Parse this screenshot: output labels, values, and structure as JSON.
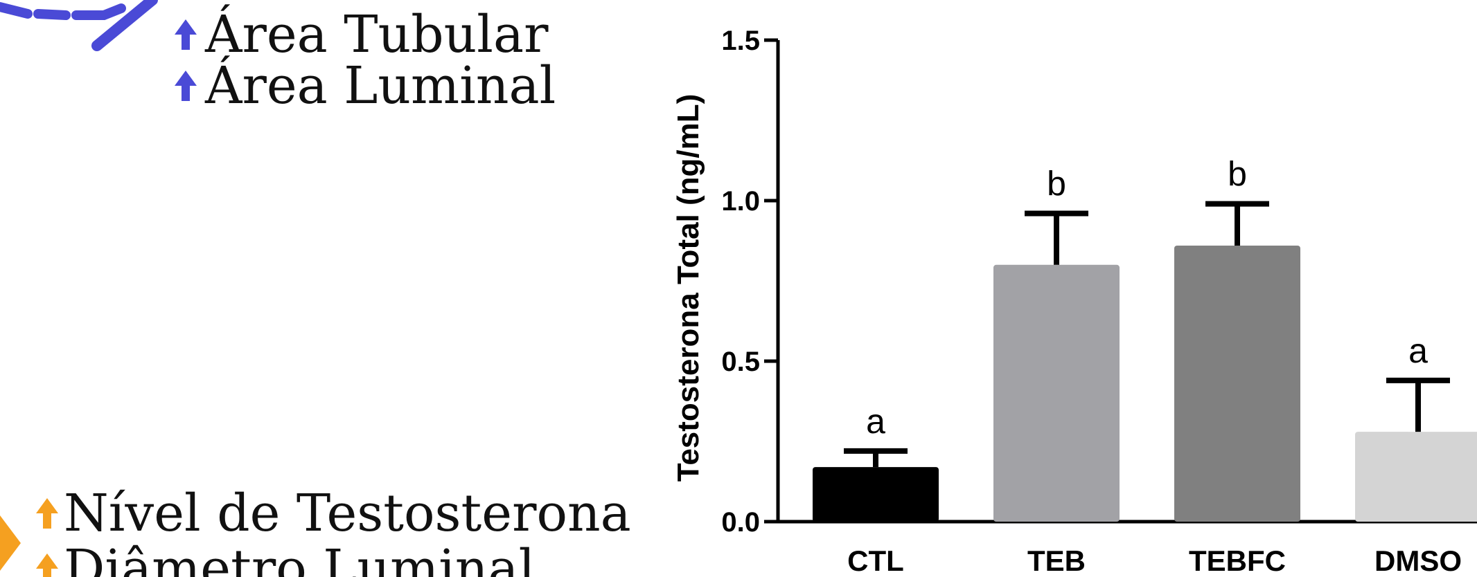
{
  "annotations": {
    "top_items": [
      {
        "label": "Área Tubular",
        "color": "#4a4ad6"
      },
      {
        "label": "Área Luminal",
        "color": "#4a4ad6"
      }
    ],
    "bottom_items": [
      {
        "label": "Nível de Testosterona",
        "color": "#f5a020"
      },
      {
        "label": "Diâmetro Luminal",
        "color": "#f5a020"
      }
    ],
    "blue_arrow_color": "#4a4ad6",
    "orange_arrow_color": "#f5a020"
  },
  "chart_data": {
    "type": "bar",
    "title": "",
    "xlabel": "",
    "ylabel": "Testosterona Total (ng/mL)",
    "ylim": [
      0,
      1.5
    ],
    "yticks": [
      0.0,
      0.5,
      1.0,
      1.5
    ],
    "ytick_labels": [
      "0.0",
      "0.5",
      "1.0",
      "1.5"
    ],
    "categories": [
      "CTL",
      "TEB",
      "TEBFC",
      "DMSO"
    ],
    "values": [
      0.17,
      0.8,
      0.86,
      0.28
    ],
    "errors": [
      0.05,
      0.16,
      0.13,
      0.16
    ],
    "bar_colors": [
      "#000000",
      "#a2a2a6",
      "#808080",
      "#d4d4d4"
    ],
    "significance_labels": [
      "a",
      "b",
      "b",
      "a"
    ]
  }
}
